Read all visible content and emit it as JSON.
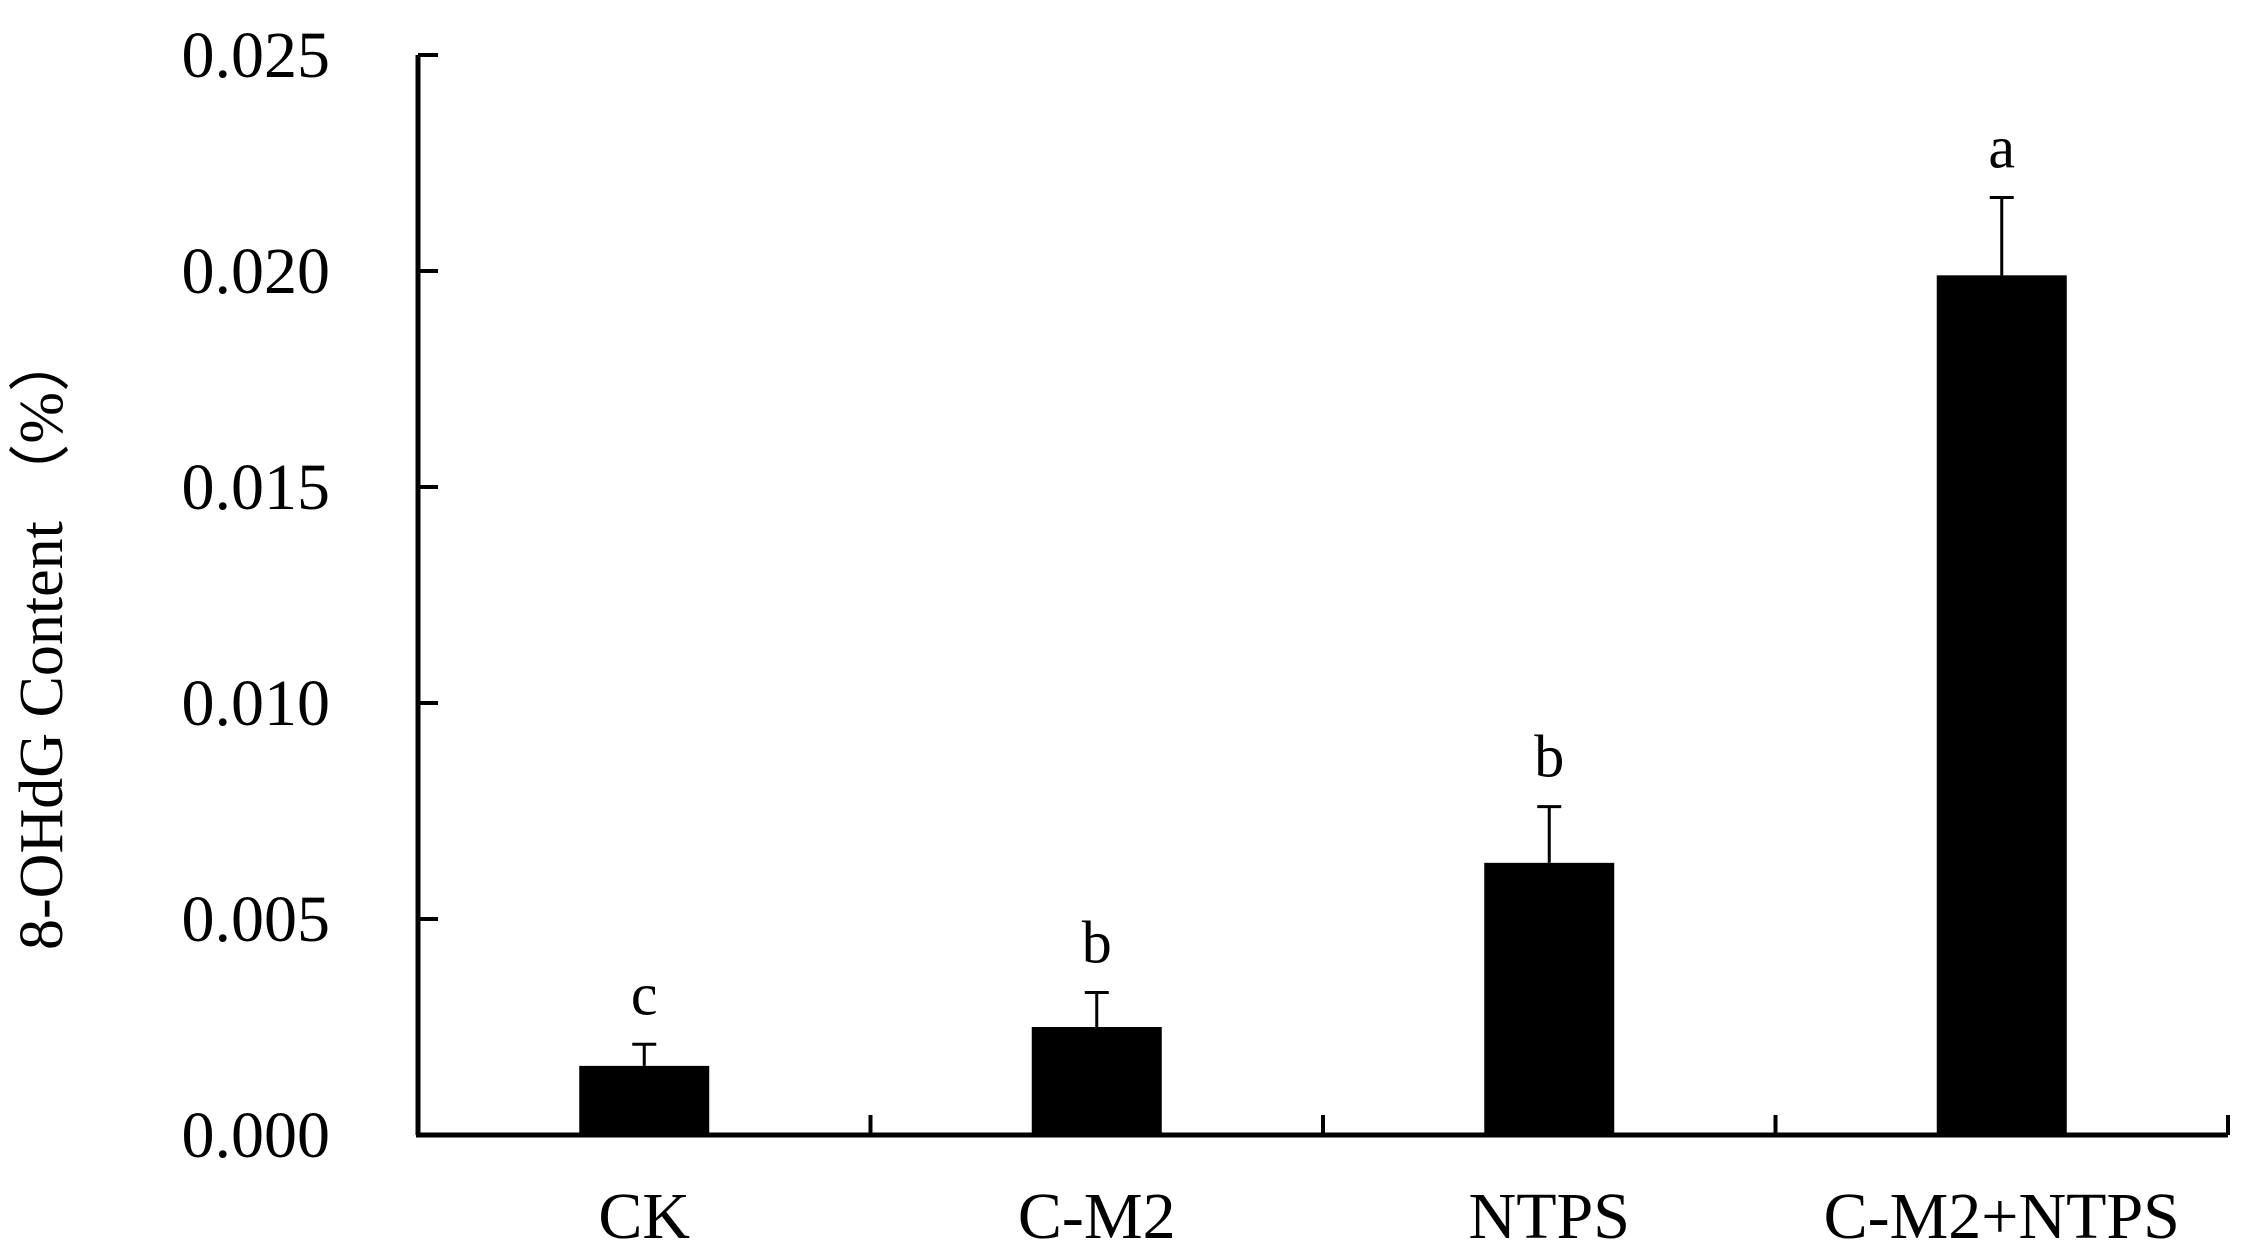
{
  "chart_data": {
    "type": "bar",
    "title": "",
    "xlabel": "",
    "ylabel": "8-OHdG Content （%）",
    "categories": [
      "CK",
      "C-M2",
      "NTPS",
      "C-M2+NTPS"
    ],
    "values": [
      0.0016,
      0.0025,
      0.0063,
      0.0199
    ],
    "errors": [
      0.0005,
      0.0008,
      0.0013,
      0.0018
    ],
    "significance": [
      "c",
      "b",
      "b",
      "a"
    ],
    "ylim": [
      0,
      0.025
    ],
    "yticks": [
      "0.000",
      "0.005",
      "0.010",
      "0.015",
      "0.020",
      "0.025"
    ],
    "ytick_values": [
      0,
      0.005,
      0.01,
      0.015,
      0.02,
      0.025
    ],
    "bar_color": "#000000",
    "grid": false,
    "legend": "none"
  }
}
